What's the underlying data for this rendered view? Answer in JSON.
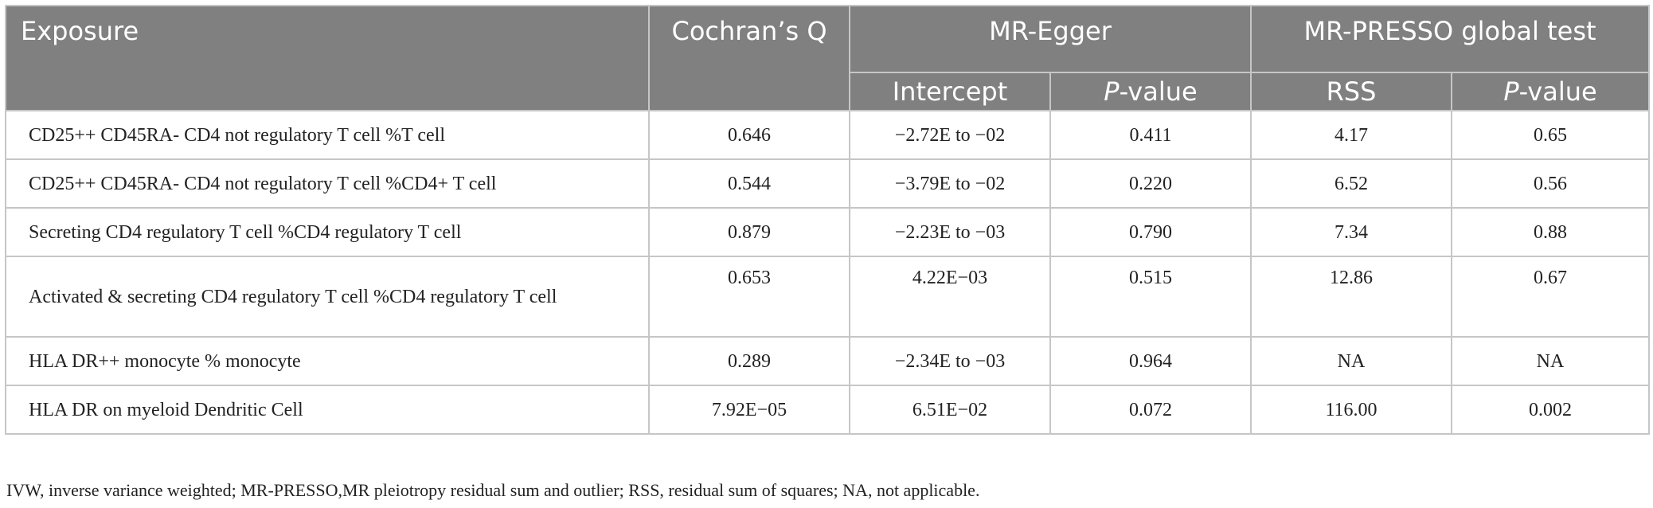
{
  "header": {
    "exposure": "Exposure",
    "cochran_q": "Cochran’s Q",
    "mr_egger": "MR-Egger",
    "mr_presso": "MR-PRESSO global test",
    "intercept": "Intercept",
    "p_value_italic": "P",
    "p_value_rest": "-value",
    "rss": "RSS"
  },
  "rows": [
    {
      "exposure": "CD25++ CD45RA- CD4 not regulatory T cell %T cell",
      "cochran_q": "0.646",
      "intercept": "−2.72E to −02",
      "egger_p": "0.411",
      "rss": "4.17",
      "presso_p": "0.65"
    },
    {
      "exposure": "CD25++ CD45RA- CD4 not regulatory T cell %CD4+ T cell",
      "cochran_q": "0.544",
      "intercept": "−3.79E to −02",
      "egger_p": "0.220",
      "rss": "6.52",
      "presso_p": "0.56"
    },
    {
      "exposure": "Secreting CD4 regulatory T cell %CD4 regulatory T cell",
      "cochran_q": "0.879",
      "intercept": "−2.23E to −03",
      "egger_p": "0.790",
      "rss": "7.34",
      "presso_p": "0.88"
    },
    {
      "exposure": "Activated & secreting CD4 regulatory T cell %CD4 regulatory T cell",
      "cochran_q": "0.653",
      "intercept": "4.22E−03",
      "egger_p": "0.515",
      "rss": "12.86",
      "presso_p": "0.67"
    },
    {
      "exposure": "HLA DR++ monocyte % monocyte",
      "cochran_q": "0.289",
      "intercept": "−2.34E to −03",
      "egger_p": "0.964",
      "rss": "NA",
      "presso_p": "NA"
    },
    {
      "exposure": "HLA DR on myeloid Dendritic Cell",
      "cochran_q": "7.92E−05",
      "intercept": "6.51E−02",
      "egger_p": "0.072",
      "rss": "116.00",
      "presso_p": "0.002"
    }
  ],
  "footnote": "IVW, inverse variance weighted; MR-PRESSO,MR pleiotropy residual sum and outlier; RSS, residual sum of squares; NA, not applicable."
}
